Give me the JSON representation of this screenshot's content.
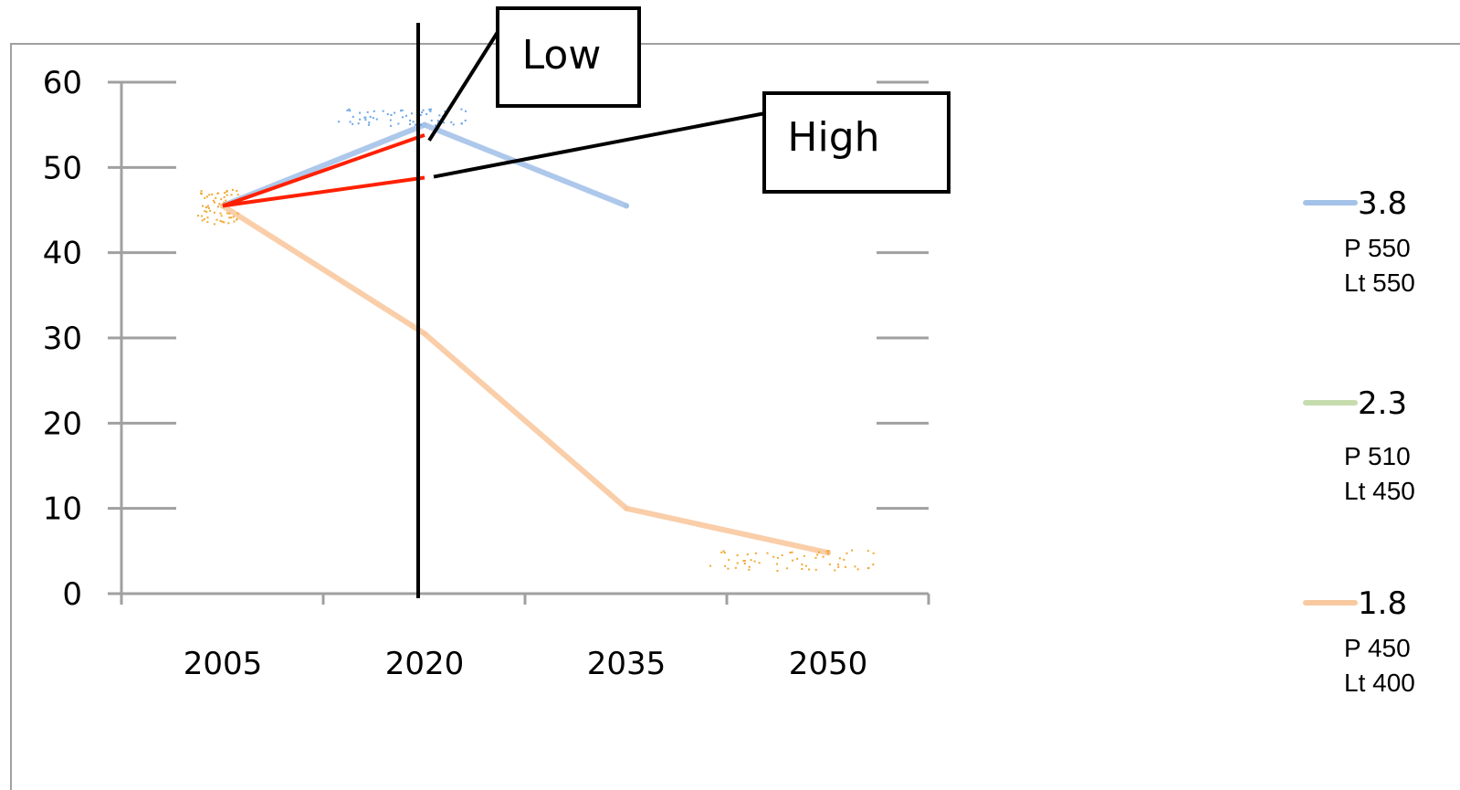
{
  "chart_data": {
    "type": "line",
    "title": "",
    "xlabel": "",
    "ylabel": "",
    "x": [
      2005,
      2020,
      2035,
      2050
    ],
    "x_tick_labels": [
      "2005",
      "2020",
      "2035",
      "2050"
    ],
    "y_tick_labels": [
      "0",
      "10",
      "20",
      "30",
      "40",
      "50",
      "60"
    ],
    "xlim": [
      2005,
      2050
    ],
    "ylim": [
      0,
      60
    ],
    "grid": false,
    "legend_position": "right",
    "series": [
      {
        "name": "3.8",
        "sub_labels": [
          "P 550",
          "Lt 550"
        ],
        "color": "#a4c2e8",
        "points": [
          [
            2005,
            45.5
          ],
          [
            2020,
            55
          ],
          [
            2035,
            45.5
          ]
        ]
      },
      {
        "name": "2.3",
        "sub_labels": [
          "P 510",
          "Lt 450"
        ],
        "color": "#c6dcae",
        "points": []
      },
      {
        "name": "1.8",
        "sub_labels": [
          "P 450",
          "Lt 400"
        ],
        "color": "#f8c9a0",
        "points": [
          [
            2005,
            45.5
          ],
          [
            2020,
            30.5
          ],
          [
            2035,
            10
          ],
          [
            2050,
            4.8
          ]
        ]
      }
    ],
    "range_lines": [
      {
        "color": "#ff2000",
        "from": [
          2005,
          45.5
        ],
        "to": [
          2020,
          53.8
        ]
      },
      {
        "color": "#ff2000",
        "from": [
          2005,
          45.5
        ],
        "to": [
          2020,
          48.8
        ]
      }
    ],
    "reference_line_x": 2020,
    "annotations": [
      {
        "text": "Low",
        "target": [
          2020,
          53.8
        ]
      },
      {
        "text": "High",
        "target": [
          2020,
          48.8
        ]
      }
    ]
  }
}
